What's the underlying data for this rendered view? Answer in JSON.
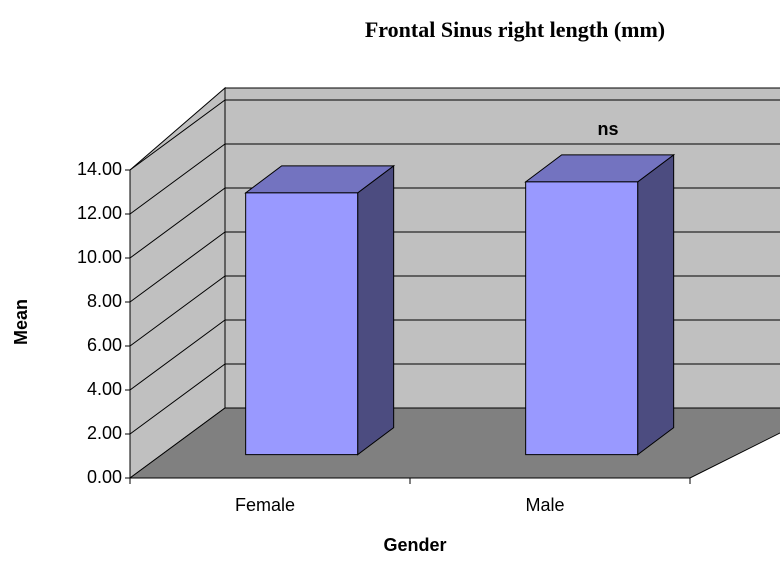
{
  "chart_data": {
    "type": "bar3d",
    "title": "Frontal Sinus right length (mm)",
    "x_label": "Gender",
    "y_label": "Mean",
    "annotation": "ns",
    "categories": [
      "Female",
      "Male"
    ],
    "values": [
      11.9,
      12.4
    ],
    "color": "#9999ff",
    "ylim": [
      0,
      14
    ],
    "yticks": [
      {
        "value": 0,
        "label": "0.00"
      },
      {
        "value": 2,
        "label": "2.00"
      },
      {
        "value": 4,
        "label": "4.00"
      },
      {
        "value": 6,
        "label": "6.00"
      },
      {
        "value": 8,
        "label": "8.00"
      },
      {
        "value": 10,
        "label": "10.00"
      },
      {
        "value": 12,
        "label": "12.00"
      },
      {
        "value": 14,
        "label": "14.00"
      }
    ],
    "grid": true
  }
}
